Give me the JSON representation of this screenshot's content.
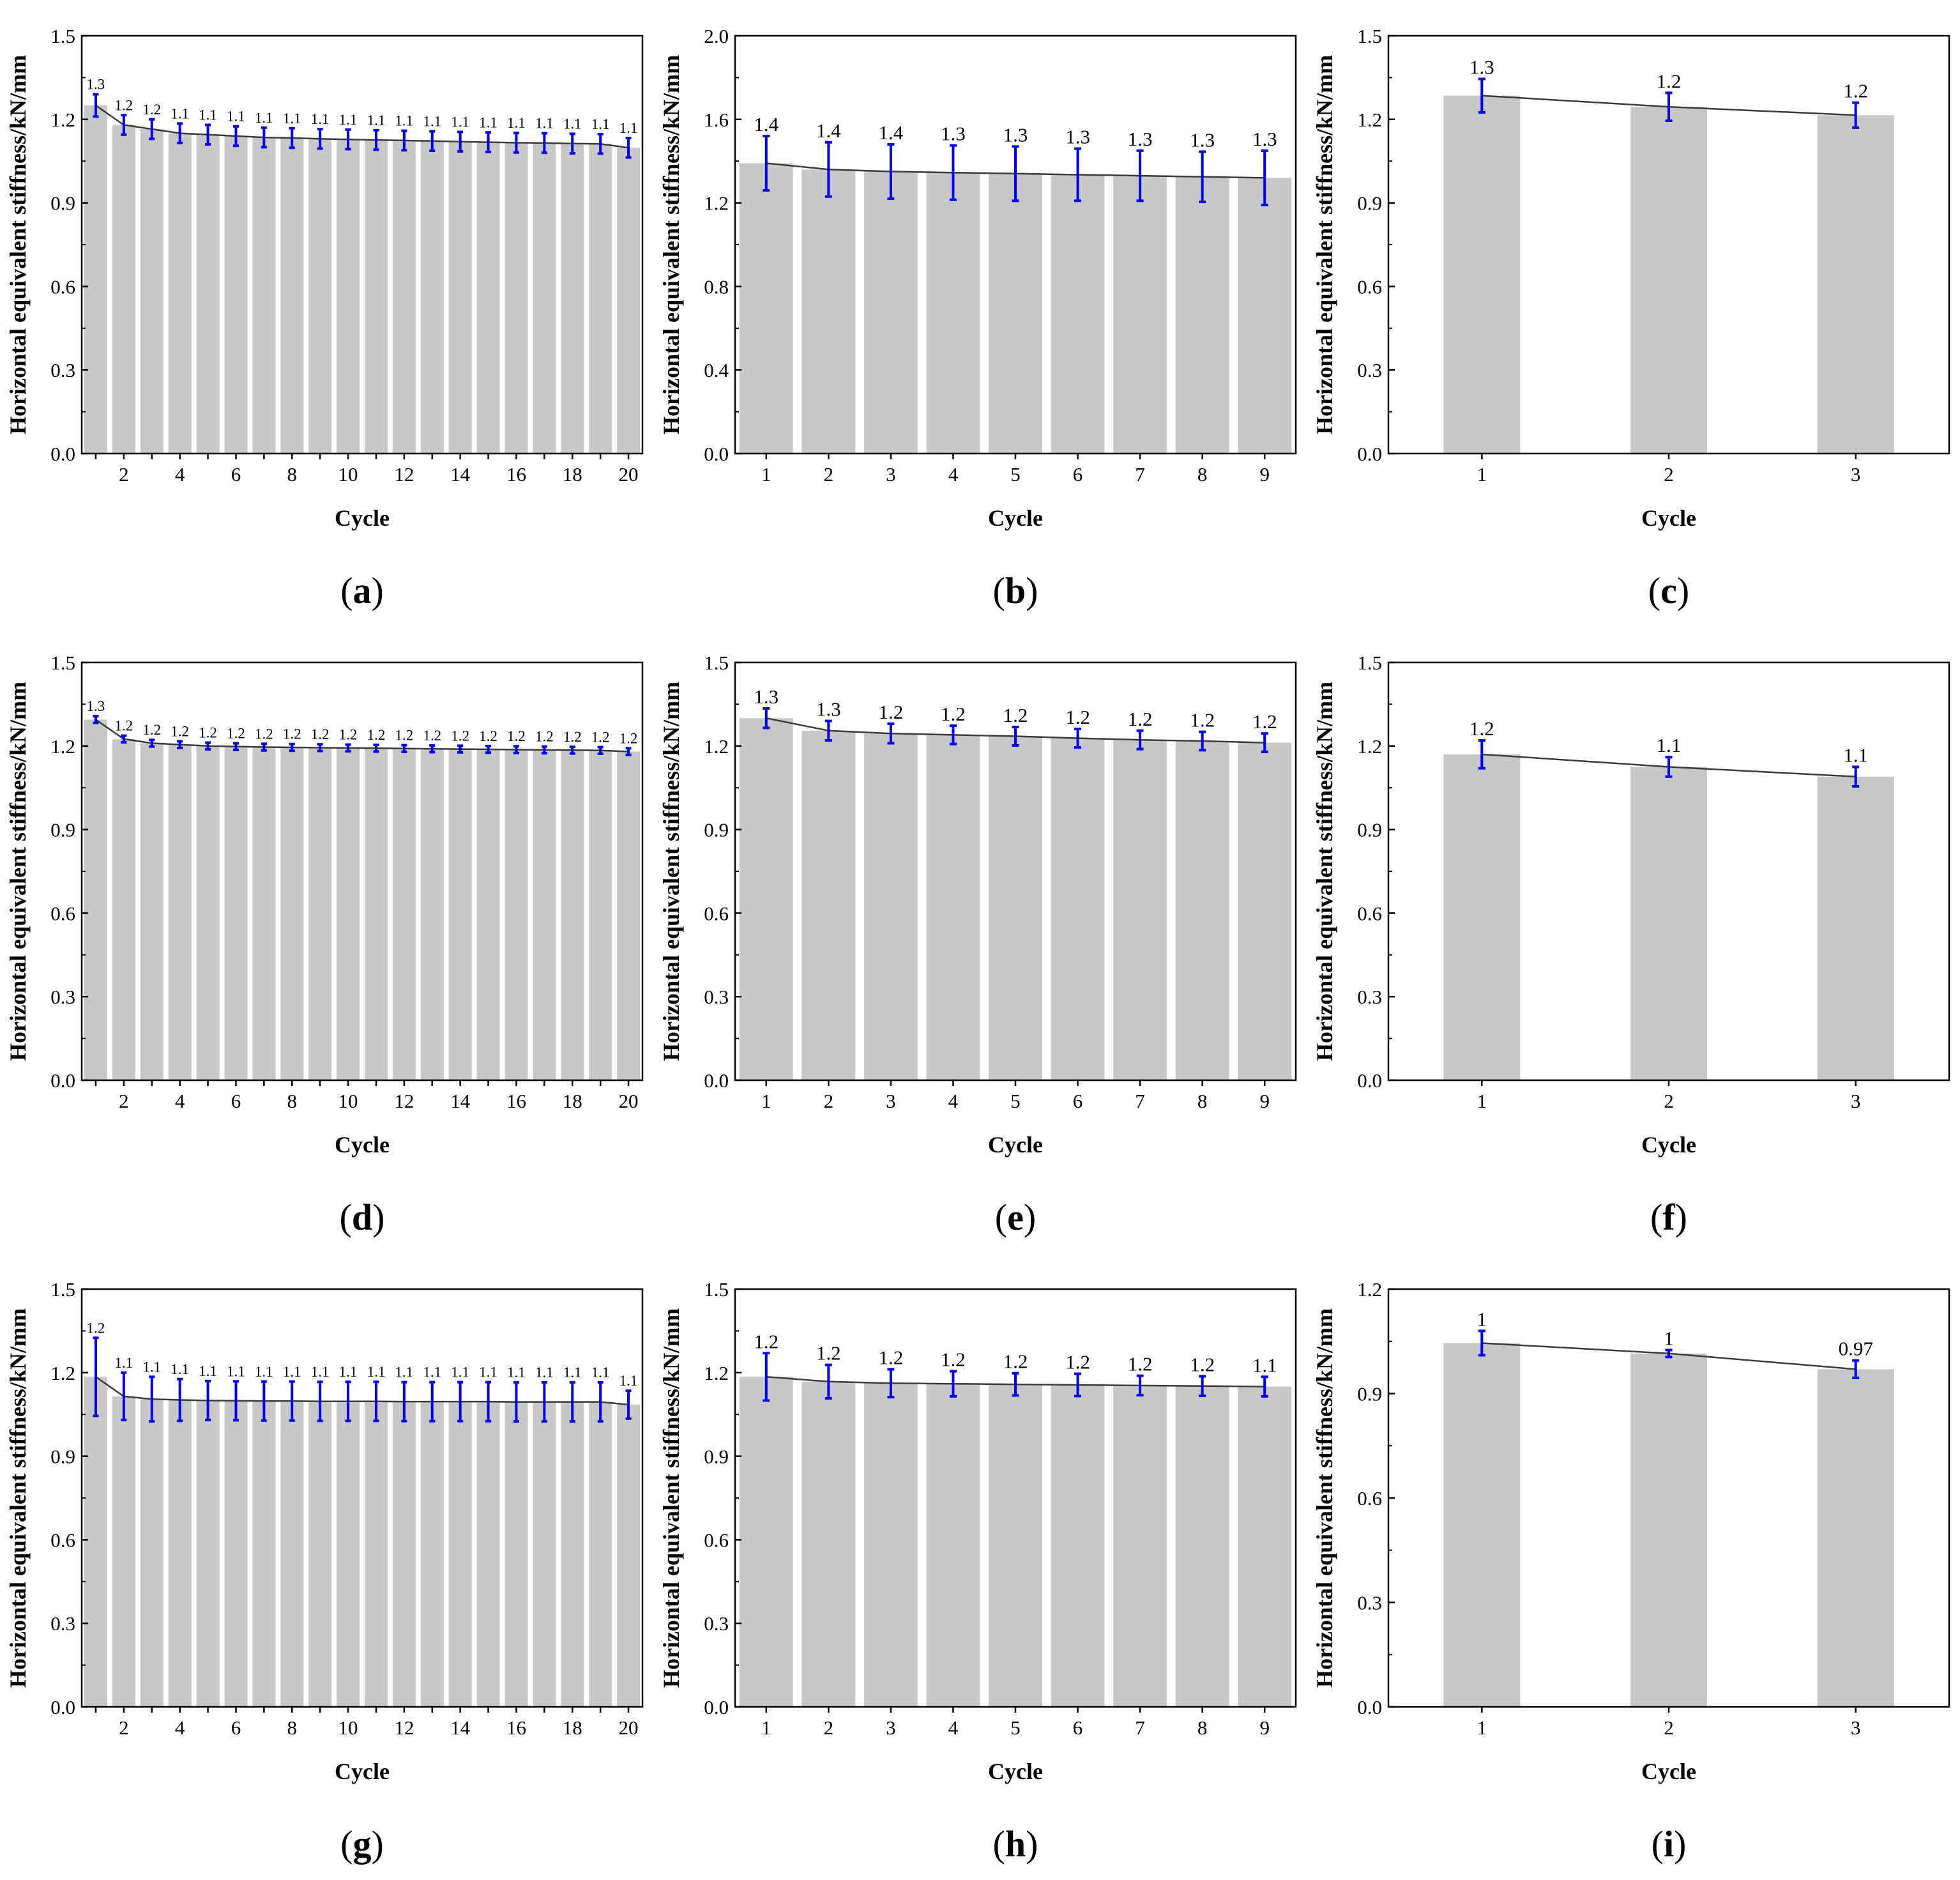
{
  "figure": {
    "panels": [
      "a",
      "b",
      "c",
      "d",
      "e",
      "f",
      "g",
      "h",
      "i"
    ]
  },
  "chart_data": [
    {
      "panel": "a",
      "type": "bar",
      "xlabel": "Cycle",
      "ylabel": "Horizontal equivalent stiffness/kN/mm",
      "ylim": [
        0,
        1.5
      ],
      "yticks": [
        "0.0",
        "0.3",
        "0.6",
        "0.9",
        "1.2",
        "1.5"
      ],
      "categories": [
        1,
        2,
        3,
        4,
        5,
        6,
        7,
        8,
        9,
        10,
        11,
        12,
        13,
        14,
        15,
        16,
        17,
        18,
        19,
        20
      ],
      "xtick_labels": [
        "2",
        "4",
        "6",
        "8",
        "10",
        "12",
        "14",
        "16",
        "18",
        "20"
      ],
      "values": [
        1.25,
        1.18,
        1.165,
        1.15,
        1.145,
        1.14,
        1.135,
        1.133,
        1.13,
        1.128,
        1.126,
        1.124,
        1.122,
        1.12,
        1.118,
        1.116,
        1.115,
        1.113,
        1.112,
        1.098
      ],
      "errors": [
        0.04,
        0.035,
        0.035,
        0.035,
        0.035,
        0.035,
        0.035,
        0.035,
        0.035,
        0.035,
        0.035,
        0.035,
        0.035,
        0.035,
        0.035,
        0.035,
        0.035,
        0.035,
        0.035,
        0.035
      ],
      "data_labels": [
        "1.3",
        "1.2",
        "1.2",
        "1.1",
        "1.1",
        "1.1",
        "1.1",
        "1.1",
        "1.1",
        "1.1",
        "1.1",
        "1.1",
        "1.1",
        "1.1",
        "1.1",
        "1.1",
        "1.1",
        "1.1",
        "1.1",
        "1.1"
      ],
      "colors": {
        "bar": "#c8c8c8",
        "error": "#0000ee",
        "line": "#3a3a3a"
      }
    },
    {
      "panel": "b",
      "type": "bar",
      "xlabel": "Cycle",
      "ylabel": "Horizontal equivalent stiffness/kN/mm",
      "ylim": [
        0,
        2.0
      ],
      "yticks": [
        "0.0",
        "0.4",
        "0.8",
        "1.2",
        "1.6",
        "2.0"
      ],
      "categories": [
        1,
        2,
        3,
        4,
        5,
        6,
        7,
        8,
        9
      ],
      "xtick_labels": [
        "1",
        "2",
        "3",
        "4",
        "5",
        "6",
        "7",
        "8",
        "9"
      ],
      "values": [
        1.39,
        1.36,
        1.35,
        1.345,
        1.34,
        1.335,
        1.33,
        1.325,
        1.32
      ],
      "errors": [
        0.13,
        0.13,
        0.13,
        0.13,
        0.13,
        0.125,
        0.12,
        0.12,
        0.13
      ],
      "data_labels": [
        "1.4",
        "1.4",
        "1.4",
        "1.3",
        "1.3",
        "1.3",
        "1.3",
        "1.3",
        "1.3"
      ],
      "colors": {
        "bar": "#c8c8c8",
        "error": "#0000ee",
        "line": "#3a3a3a"
      }
    },
    {
      "panel": "c",
      "type": "bar",
      "xlabel": "Cycle",
      "ylabel": "Horizontal equivalent stiffness/kN/mm",
      "ylim": [
        0,
        1.5
      ],
      "yticks": [
        "0.0",
        "0.3",
        "0.6",
        "0.9",
        "1.2",
        "1.5"
      ],
      "categories": [
        1,
        2,
        3
      ],
      "xtick_labels": [
        "1",
        "2",
        "3"
      ],
      "values": [
        1.285,
        1.245,
        1.215
      ],
      "errors": [
        0.06,
        0.05,
        0.045
      ],
      "data_labels": [
        "1.3",
        "1.2",
        "1.2"
      ],
      "colors": {
        "bar": "#c8c8c8",
        "error": "#0000ee",
        "line": "#3a3a3a"
      }
    },
    {
      "panel": "d",
      "type": "bar",
      "xlabel": "Cycle",
      "ylabel": "Horizontal equivalent stiffness/kN/mm",
      "ylim": [
        0,
        1.5
      ],
      "yticks": [
        "0.0",
        "0.3",
        "0.6",
        "0.9",
        "1.2",
        "1.5"
      ],
      "categories": [
        1,
        2,
        3,
        4,
        5,
        6,
        7,
        8,
        9,
        10,
        11,
        12,
        13,
        14,
        15,
        16,
        17,
        18,
        19,
        20
      ],
      "xtick_labels": [
        "2",
        "4",
        "6",
        "8",
        "10",
        "12",
        "14",
        "16",
        "18",
        "20"
      ],
      "values": [
        1.295,
        1.225,
        1.21,
        1.205,
        1.2,
        1.198,
        1.196,
        1.195,
        1.194,
        1.193,
        1.192,
        1.191,
        1.19,
        1.189,
        1.188,
        1.187,
        1.186,
        1.185,
        1.184,
        1.18
      ],
      "errors": [
        0.012,
        0.012,
        0.012,
        0.012,
        0.012,
        0.012,
        0.012,
        0.012,
        0.012,
        0.012,
        0.012,
        0.012,
        0.012,
        0.012,
        0.012,
        0.012,
        0.012,
        0.012,
        0.012,
        0.012
      ],
      "data_labels": [
        "1.3",
        "1.2",
        "1.2",
        "1.2",
        "1.2",
        "1.2",
        "1.2",
        "1.2",
        "1.2",
        "1.2",
        "1.2",
        "1.2",
        "1.2",
        "1.2",
        "1.2",
        "1.2",
        "1.2",
        "1.2",
        "1.2",
        "1.2"
      ],
      "colors": {
        "bar": "#c8c8c8",
        "error": "#0000ee",
        "line": "#3a3a3a"
      }
    },
    {
      "panel": "e",
      "type": "bar",
      "xlabel": "Cycle",
      "ylabel": "Horizontal equivalent stiffness/kN/mm",
      "ylim": [
        0,
        1.5
      ],
      "yticks": [
        "0.0",
        "0.3",
        "0.6",
        "0.9",
        "1.2",
        "1.5"
      ],
      "categories": [
        1,
        2,
        3,
        4,
        5,
        6,
        7,
        8,
        9
      ],
      "xtick_labels": [
        "1",
        "2",
        "3",
        "4",
        "5",
        "6",
        "7",
        "8",
        "9"
      ],
      "values": [
        1.3,
        1.255,
        1.245,
        1.24,
        1.235,
        1.228,
        1.222,
        1.218,
        1.212
      ],
      "errors": [
        0.035,
        0.035,
        0.035,
        0.033,
        0.033,
        0.033,
        0.033,
        0.033,
        0.033
      ],
      "data_labels": [
        "1.3",
        "1.3",
        "1.2",
        "1.2",
        "1.2",
        "1.2",
        "1.2",
        "1.2",
        "1.2"
      ],
      "colors": {
        "bar": "#c8c8c8",
        "error": "#0000ee",
        "line": "#3a3a3a"
      }
    },
    {
      "panel": "f",
      "type": "bar",
      "xlabel": "Cycle",
      "ylabel": "Horizontal equivalent stiffness/kN/mm",
      "ylim": [
        0,
        1.5
      ],
      "yticks": [
        "0.0",
        "0.3",
        "0.6",
        "0.9",
        "1.2",
        "1.5"
      ],
      "categories": [
        1,
        2,
        3
      ],
      "xtick_labels": [
        "1",
        "2",
        "3"
      ],
      "values": [
        1.17,
        1.125,
        1.09
      ],
      "errors": [
        0.05,
        0.035,
        0.035
      ],
      "data_labels": [
        "1.2",
        "1.1",
        "1.1"
      ],
      "colors": {
        "bar": "#c8c8c8",
        "error": "#0000ee",
        "line": "#3a3a3a"
      }
    },
    {
      "panel": "g",
      "type": "bar",
      "xlabel": "Cycle",
      "ylabel": "Horizontal equivalent stiffness/kN/mm",
      "ylim": [
        0,
        1.5
      ],
      "yticks": [
        "0.0",
        "0.3",
        "0.6",
        "0.9",
        "1.2",
        "1.5"
      ],
      "categories": [
        1,
        2,
        3,
        4,
        5,
        6,
        7,
        8,
        9,
        10,
        11,
        12,
        13,
        14,
        15,
        16,
        17,
        18,
        19,
        20
      ],
      "xtick_labels": [
        "2",
        "4",
        "6",
        "8",
        "10",
        "12",
        "14",
        "16",
        "18",
        "20"
      ],
      "values": [
        1.185,
        1.115,
        1.105,
        1.102,
        1.1,
        1.099,
        1.098,
        1.098,
        1.097,
        1.097,
        1.097,
        1.096,
        1.096,
        1.096,
        1.096,
        1.095,
        1.095,
        1.095,
        1.095,
        1.085
      ],
      "errors": [
        0.14,
        0.085,
        0.08,
        0.075,
        0.07,
        0.07,
        0.07,
        0.07,
        0.07,
        0.07,
        0.07,
        0.07,
        0.07,
        0.07,
        0.07,
        0.07,
        0.07,
        0.07,
        0.07,
        0.05
      ],
      "data_labels": [
        "1.2",
        "1.1",
        "1.1",
        "1.1",
        "1.1",
        "1.1",
        "1.1",
        "1.1",
        "1.1",
        "1.1",
        "1.1",
        "1.1",
        "1.1",
        "1.1",
        "1.1",
        "1.1",
        "1.1",
        "1.1",
        "1.1",
        "1.1"
      ],
      "colors": {
        "bar": "#c8c8c8",
        "error": "#0000ee",
        "line": "#3a3a3a"
      }
    },
    {
      "panel": "h",
      "type": "bar",
      "xlabel": "Cycle",
      "ylabel": "Horizontal equivalent stiffness/kN/mm",
      "ylim": [
        0,
        1.5
      ],
      "yticks": [
        "0.0",
        "0.3",
        "0.6",
        "0.9",
        "1.2",
        "1.5"
      ],
      "categories": [
        1,
        2,
        3,
        4,
        5,
        6,
        7,
        8,
        9
      ],
      "xtick_labels": [
        "1",
        "2",
        "3",
        "4",
        "5",
        "6",
        "7",
        "8",
        "9"
      ],
      "values": [
        1.185,
        1.168,
        1.162,
        1.16,
        1.158,
        1.156,
        1.154,
        1.152,
        1.15
      ],
      "errors": [
        0.085,
        0.06,
        0.05,
        0.045,
        0.04,
        0.04,
        0.035,
        0.035,
        0.035
      ],
      "data_labels": [
        "1.2",
        "1.2",
        "1.2",
        "1.2",
        "1.2",
        "1.2",
        "1.2",
        "1.2",
        "1.1"
      ],
      "colors": {
        "bar": "#c8c8c8",
        "error": "#0000ee",
        "line": "#3a3a3a"
      }
    },
    {
      "panel": "i",
      "type": "bar",
      "xlabel": "Cycle",
      "ylabel": "Horizontal equivalent stiffness/kN/mm",
      "ylim": [
        0,
        1.2
      ],
      "yticks": [
        "0.0",
        "0.3",
        "0.6",
        "0.9",
        "1.2"
      ],
      "categories": [
        1,
        2,
        3
      ],
      "xtick_labels": [
        "1",
        "2",
        "3"
      ],
      "values": [
        1.045,
        1.015,
        0.97
      ],
      "errors": [
        0.035,
        0.01,
        0.025
      ],
      "data_labels": [
        "1",
        "1",
        "0.97"
      ],
      "colors": {
        "bar": "#c8c8c8",
        "error": "#0000ee",
        "line": "#3a3a3a"
      }
    }
  ]
}
